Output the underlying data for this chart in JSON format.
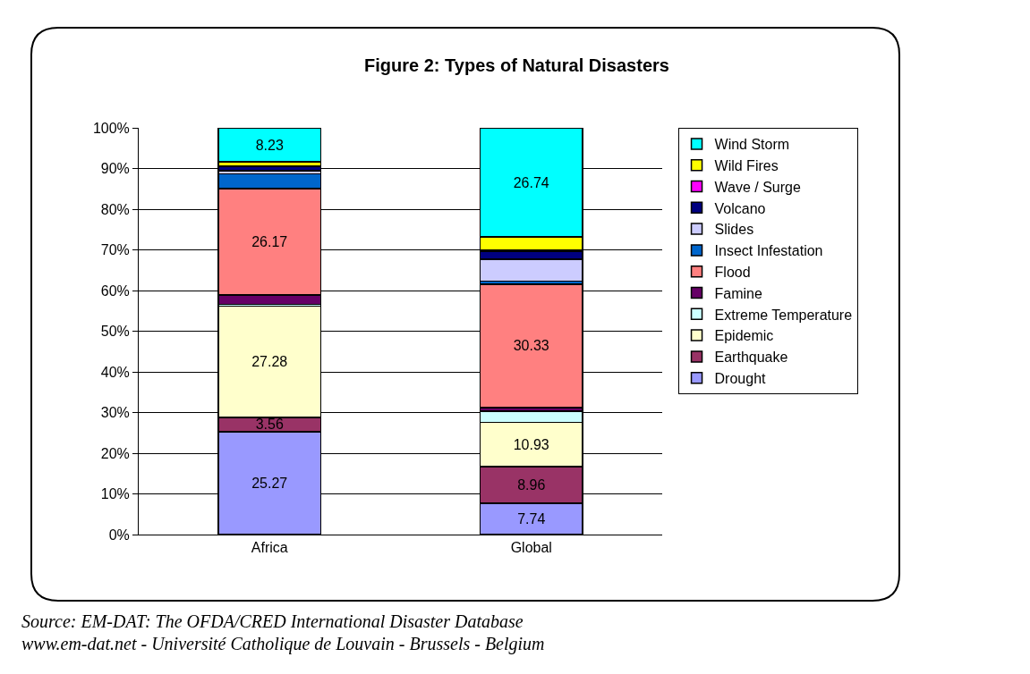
{
  "chart_data": {
    "type": "bar",
    "title": "Figure 2: Types of Natural Disasters",
    "stacked": true,
    "categories": [
      "Africa",
      "Global"
    ],
    "series": [
      {
        "name": "Drought",
        "color": "#9999ff",
        "values": [
          25.27,
          7.74
        ],
        "value_labels": [
          "25.27",
          "7.74"
        ]
      },
      {
        "name": "Earthquake",
        "color": "#993366",
        "values": [
          3.56,
          8.96
        ],
        "value_labels": [
          "3.56",
          "8.96"
        ]
      },
      {
        "name": "Epidemic",
        "color": "#ffffcc",
        "values": [
          27.28,
          10.93
        ],
        "value_labels": [
          "27.28",
          "10.93"
        ]
      },
      {
        "name": "Extreme Temperature",
        "color": "#ccffff",
        "values": [
          0.5,
          2.7
        ]
      },
      {
        "name": "Famine",
        "color": "#660066",
        "values": [
          2.3,
          0.9
        ]
      },
      {
        "name": "Flood",
        "color": "#ff8080",
        "values": [
          26.17,
          30.33
        ],
        "value_labels": [
          "26.17",
          "30.33"
        ]
      },
      {
        "name": "Insect Infestation",
        "color": "#0066cc",
        "values": [
          3.6,
          0.7
        ]
      },
      {
        "name": "Slides",
        "color": "#ccccff",
        "values": [
          0.8,
          5.4
        ]
      },
      {
        "name": "Volcano",
        "color": "#000080",
        "values": [
          1.0,
          2.0
        ]
      },
      {
        "name": "Wave / Surge",
        "color": "#ff00ff",
        "values": [
          0.2,
          0.3
        ]
      },
      {
        "name": "Wild Fires",
        "color": "#ffff00",
        "values": [
          1.0,
          3.2
        ]
      },
      {
        "name": "Wind Storm",
        "color": "#00ffff",
        "values": [
          8.23,
          26.74
        ],
        "value_labels": [
          "8.23",
          "26.74"
        ]
      }
    ],
    "ylim": [
      0,
      100
    ],
    "yticks": [
      {
        "value": 0,
        "label": "0%"
      },
      {
        "value": 10,
        "label": "10%"
      },
      {
        "value": 20,
        "label": "20%"
      },
      {
        "value": 30,
        "label": "30%"
      },
      {
        "value": 40,
        "label": "40%"
      },
      {
        "value": 50,
        "label": "50%"
      },
      {
        "value": 60,
        "label": "60%"
      },
      {
        "value": 70,
        "label": "70%"
      },
      {
        "value": 80,
        "label": "80%"
      },
      {
        "value": 90,
        "label": "90%"
      },
      {
        "value": 100,
        "label": "100%"
      }
    ],
    "grid": "y",
    "legend": "right",
    "annotations": [
      "Source: EM-DAT: The OFDA/CRED International Disaster Database",
      "www.em-dat.net - Université Catholique de Louvain - Brussels - Belgium"
    ]
  }
}
